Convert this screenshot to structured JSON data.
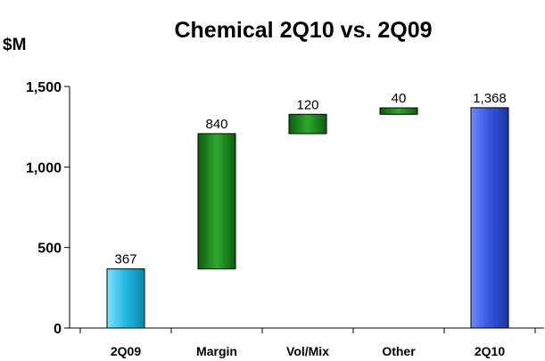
{
  "chart_data": {
    "type": "bar",
    "subtype": "waterfall",
    "title": "Chemical 2Q10 vs. 2Q09",
    "ylabel": "$M",
    "xlabel": "",
    "ylim": [
      0,
      1500
    ],
    "yticks": [
      0,
      500,
      1000,
      1500
    ],
    "ytick_labels": [
      "0",
      "500",
      "1,000",
      "1,500"
    ],
    "grid": false,
    "legend": "none",
    "categories": [
      "2Q09",
      "Margin",
      "Vol/Mix",
      "Other",
      "2Q10"
    ],
    "values": [
      367,
      840,
      120,
      40,
      1368
    ],
    "data_labels": [
      "367",
      "840",
      "120",
      "40",
      "1,368"
    ],
    "bar_kinds": [
      "total",
      "delta",
      "delta",
      "delta",
      "total"
    ],
    "colors": {
      "start_total": "#22b8e0",
      "delta": "#1d8a1d",
      "end_total": "#3355dd"
    }
  }
}
